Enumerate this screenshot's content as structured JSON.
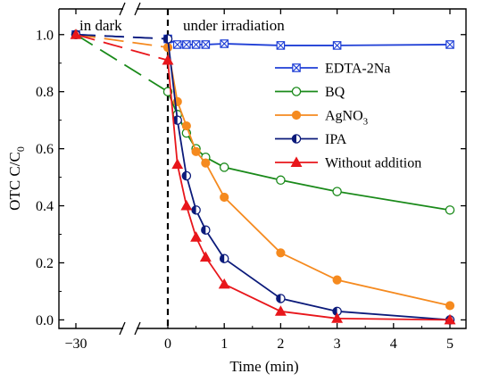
{
  "chart_data": {
    "type": "line",
    "title": "",
    "xlabel": "Time (min)",
    "ylabel": "OTC C/C",
    "ylabel_sub": "0",
    "ylim": [
      -0.03,
      1.09
    ],
    "x_ticks": [
      -30,
      0,
      1,
      2,
      3,
      4,
      5
    ],
    "x_tick_labels": [
      "−30",
      "0",
      "1",
      "2",
      "3",
      "4",
      "5"
    ],
    "y_ticks": [
      0.0,
      0.2,
      0.4,
      0.6,
      0.8,
      1.0
    ],
    "y_tick_labels": [
      "0.0",
      "0.2",
      "0.4",
      "0.6",
      "0.8",
      "1.0"
    ],
    "grid": false,
    "legend_position": "upper-right",
    "annotations": {
      "dark_label": "in dark",
      "irradiation_label": "under irradiation"
    },
    "series": [
      {
        "name": "EDTA-2Na",
        "color": "#1f3fd6",
        "marker": "square-x",
        "x": [
          -30,
          0,
          0.17,
          0.33,
          0.5,
          0.67,
          1,
          2,
          3,
          5
        ],
        "y": [
          1.0,
          0.985,
          0.965,
          0.965,
          0.965,
          0.965,
          0.968,
          0.962,
          0.962,
          0.965
        ]
      },
      {
        "name": "BQ",
        "color": "#1a8a1a",
        "marker": "circle-open",
        "x": [
          -30,
          0,
          0.17,
          0.33,
          0.5,
          0.67,
          1,
          2,
          3,
          5
        ],
        "y": [
          1.0,
          0.8,
          0.72,
          0.655,
          0.6,
          0.57,
          0.535,
          0.49,
          0.45,
          0.385
        ]
      },
      {
        "name": "AgNO",
        "name_sub": "3",
        "color": "#f58a1f",
        "marker": "circle-filled",
        "x": [
          -30,
          0,
          0.17,
          0.33,
          0.5,
          0.67,
          1,
          2,
          3,
          5
        ],
        "y": [
          1.0,
          0.955,
          0.765,
          0.68,
          0.59,
          0.55,
          0.43,
          0.235,
          0.14,
          0.05
        ]
      },
      {
        "name": "IPA",
        "color": "#0b1a7a",
        "marker": "circle-half",
        "x": [
          -30,
          0,
          0.17,
          0.33,
          0.5,
          0.67,
          1,
          2,
          3,
          5
        ],
        "y": [
          1.0,
          0.985,
          0.7,
          0.505,
          0.385,
          0.315,
          0.215,
          0.075,
          0.03,
          0.0
        ]
      },
      {
        "name": "Without addition",
        "color": "#e8161b",
        "marker": "triangle",
        "x": [
          -30,
          0,
          0.17,
          0.33,
          0.5,
          0.67,
          1,
          2,
          3,
          5
        ],
        "y": [
          1.0,
          0.91,
          0.545,
          0.4,
          0.29,
          0.22,
          0.125,
          0.03,
          0.005,
          0.0
        ]
      }
    ]
  }
}
